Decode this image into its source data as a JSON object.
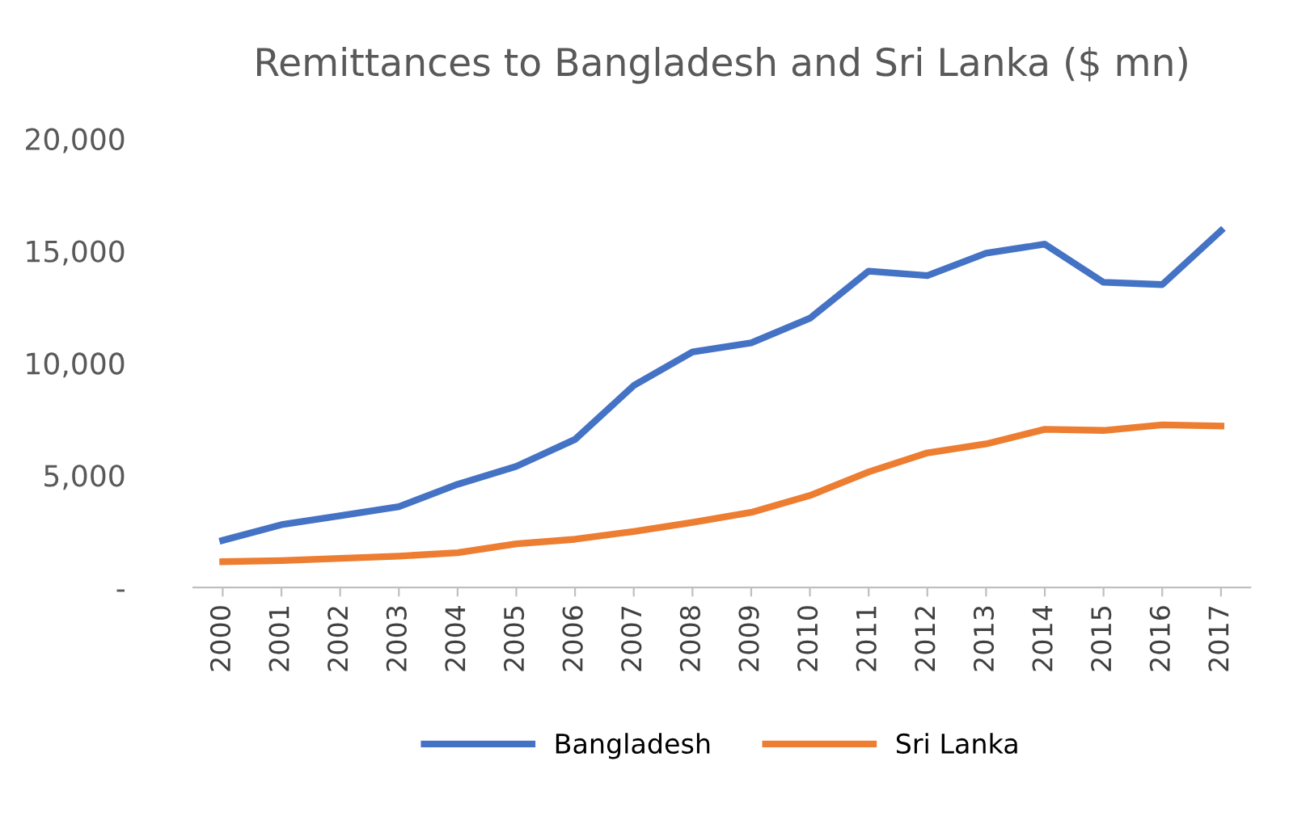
{
  "chart_data": {
    "type": "line",
    "title": "Remittances to Bangladesh and Sri Lanka ($ mn)",
    "categories": [
      "2000",
      "2001",
      "2002",
      "2003",
      "2004",
      "2005",
      "2006",
      "2007",
      "2008",
      "2009",
      "2010",
      "2011",
      "2012",
      "2013",
      "2014",
      "2015",
      "2016",
      "2017"
    ],
    "series": [
      {
        "name": "Bangladesh",
        "color": "#4472c4",
        "values": [
          2100,
          2800,
          3200,
          3600,
          4600,
          5400,
          6600,
          9000,
          10500,
          10900,
          12000,
          14100,
          13900,
          14900,
          15300,
          13600,
          13500,
          15900
        ]
      },
      {
        "name": "Sri Lanka",
        "color": "#ed7d31",
        "values": [
          1150,
          1200,
          1300,
          1400,
          1550,
          1950,
          2150,
          2500,
          2900,
          3350,
          4100,
          5150,
          6000,
          6400,
          7050,
          7000,
          7250,
          7200
        ]
      }
    ],
    "ylim": [
      0,
      20000
    ],
    "yticks": [
      {
        "value": 0,
        "label": "-"
      },
      {
        "value": 5000,
        "label": "5,000"
      },
      {
        "value": 10000,
        "label": "10,000"
      },
      {
        "value": 15000,
        "label": "15,000"
      },
      {
        "value": 20000,
        "label": "20,000"
      }
    ],
    "grid": false,
    "legend": "bottom",
    "line_style": "solid",
    "marker": "none"
  }
}
